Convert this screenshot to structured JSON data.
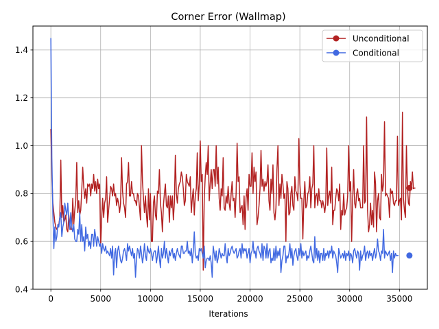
{
  "chart_data": {
    "type": "line",
    "title": "Corner Error (Wallmap)",
    "xlabel": "Iterations",
    "ylabel": "",
    "xlim": [
      -1800,
      37800
    ],
    "ylim": [
      0.4,
      1.5
    ],
    "xticks": [
      0,
      5000,
      10000,
      15000,
      20000,
      25000,
      30000,
      35000
    ],
    "xtick_labels": [
      "0",
      "5000",
      "10000",
      "15000",
      "20000",
      "25000",
      "30000",
      "35000"
    ],
    "yticks": [
      0.4,
      0.6,
      0.8,
      1.0,
      1.2,
      1.4
    ],
    "ytick_labels": [
      "0.4",
      "0.6",
      "0.8",
      "1.0",
      "1.2",
      "1.4"
    ],
    "grid": true,
    "legend_position": "upper right",
    "x_step": 100,
    "series": [
      {
        "name": "Unconditional",
        "color": "#b22222",
        "start_x": 0,
        "end_marker": {
          "x": 36000,
          "y": 0.823
        },
        "values": [
          1.07,
          0.88,
          0.76,
          0.72,
          0.68,
          0.66,
          0.65,
          0.66,
          0.67,
          0.7,
          0.72,
          0.7,
          0.75,
          0.68,
          0.69,
          0.71,
          0.65,
          0.64,
          0.71,
          0.67,
          0.65,
          0.65,
          0.78,
          0.67,
          0.73,
          0.77,
          0.76,
          0.72,
          0.77,
          0.71,
          0.73,
          0.81,
          0.91,
          0.83,
          0.78,
          0.82,
          0.76,
          0.84,
          0.83,
          0.82,
          0.79,
          0.84,
          0.82,
          0.88,
          0.81,
          0.85,
          0.8,
          0.86,
          0.82,
          0.84,
          0.72,
          0.69,
          0.78,
          0.7,
          0.76,
          0.78,
          0.71,
          0.68,
          0.73,
          0.78,
          0.83,
          0.82,
          0.79,
          0.84,
          0.79,
          0.8,
          0.75,
          0.78,
          0.76,
          0.72,
          0.76,
          0.87,
          0.81,
          0.76,
          0.74,
          0.7,
          0.84,
          0.85,
          0.77,
          0.79,
          0.79,
          0.85,
          0.8,
          0.8,
          0.77,
          0.77,
          0.75,
          0.8,
          0.79,
          0.74,
          0.69,
          0.72,
          0.85,
          0.78,
          0.72,
          0.79,
          0.71,
          0.66,
          0.82,
          0.69,
          0.8,
          0.6,
          0.69,
          0.76,
          0.79,
          0.71,
          0.69,
          0.81,
          0.8,
          0.7,
          0.76,
          0.72,
          0.64,
          0.75,
          0.8,
          0.84,
          0.75,
          0.74,
          0.79,
          0.68,
          0.79,
          0.74,
          0.79,
          0.69,
          0.76,
          0.75,
          0.8,
          0.76,
          0.82,
          0.84,
          0.85,
          0.89,
          0.87,
          0.82,
          0.75,
          0.77,
          0.77,
          0.85,
          0.84,
          0.83,
          0.87,
          0.72,
          0.78,
          0.82,
          0.71,
          0.79,
          0.82,
          0.79,
          0.77,
          0.84,
          0.89,
          0.85,
          0.88,
          0.83,
          0.78,
          0.87,
          0.93,
          0.88,
          0.78,
          0.77,
          0.84,
          0.9,
          0.82,
          0.9,
          0.9,
          0.83,
          0.79,
          0.84,
          0.91,
          0.78,
          0.73,
          0.82,
          0.79,
          0.95,
          0.74,
          0.73,
          0.79,
          0.76,
          0.83,
          0.76,
          0.73,
          0.8,
          0.85,
          0.77,
          0.78,
          0.7,
          0.8,
          0.76,
          0.85,
          0.87,
          0.72,
          0.74,
          0.75,
          0.67,
          0.79,
          0.86,
          0.78,
          0.82,
          0.73,
          0.88,
          0.83,
          0.83,
          0.84,
          0.8,
          0.91,
          0.85,
          0.89,
          0.67,
          0.7,
          0.75,
          0.82,
          0.89,
          0.83,
          0.86,
          0.81,
          0.85,
          0.83,
          0.85,
          0.92,
          0.77,
          0.73,
          0.86,
          0.8,
          0.92,
          0.72,
          0.69,
          0.74,
          0.9,
          0.87,
          0.75,
          0.84,
          0.78,
          0.88,
          0.84,
          0.78,
          0.8,
          0.82,
          0.85,
          0.82,
          0.71,
          0.72,
          0.8,
          0.83,
          0.75,
          0.73,
          0.87,
          0.81,
          0.8,
          0.77,
          0.79,
          0.84,
          0.78,
          0.78,
          0.71,
          0.77,
          0.85,
          0.74,
          0.75,
          0.8,
          0.81,
          0.87,
          0.74,
          0.82,
          0.84,
          0.75,
          0.74,
          0.79,
          0.8,
          0.75,
          0.82,
          0.77,
          0.77,
          0.74,
          0.77,
          0.75,
          0.72,
          0.76,
          0.79,
          0.75,
          0.79,
          0.81,
          0.76,
          0.91,
          0.67,
          0.73,
          0.73,
          0.78,
          0.82,
          0.81,
          0.77,
          0.84,
          0.65,
          0.73,
          0.71,
          0.8,
          0.71,
          0.73,
          0.74,
          0.79,
          0.79,
          0.81,
          0.85,
          0.76,
          0.77,
          0.9,
          0.76,
          0.74,
          0.8,
          0.82,
          0.77,
          0.78,
          0.74,
          0.74,
          0.74,
          0.78,
          0.76,
          0.77,
          0.81,
          0.73,
          0.64,
          0.67,
          0.76,
          0.67,
          0.73,
          0.66,
          0.89,
          0.84,
          0.81,
          0.77,
          0.8,
          0.7,
          0.69,
          0.88,
          0.81,
          0.84,
          0.74,
          0.79,
          0.8,
          0.79,
          0.78,
          0.7,
          0.82,
          0.8,
          0.81,
          0.76,
          0.75,
          0.77,
          0.77,
          0.71,
          0.75,
          0.77,
          0.78,
          0.69,
          0.75,
          0.78,
          0.73,
          0.7,
          0.77,
          0.83,
          0.76,
          0.75,
          0.85,
          0.82,
          0.89,
          0.82,
          0.823,
          0.823
        ],
        "peaks": [
          {
            "x": 1000,
            "y": 0.94
          },
          {
            "x": 2600,
            "y": 0.93
          },
          {
            "x": 3900,
            "y": 0.84
          },
          {
            "x": 5000,
            "y": 0.58
          },
          {
            "x": 5600,
            "y": 0.87
          },
          {
            "x": 7100,
            "y": 0.95
          },
          {
            "x": 7800,
            "y": 0.93
          },
          {
            "x": 9100,
            "y": 1.0
          },
          {
            "x": 10200,
            "y": 0.6
          },
          {
            "x": 10900,
            "y": 0.9
          },
          {
            "x": 12500,
            "y": 0.96
          },
          {
            "x": 13600,
            "y": 0.88
          },
          {
            "x": 14700,
            "y": 0.97
          },
          {
            "x": 15000,
            "y": 1.02
          },
          {
            "x": 15300,
            "y": 0.48
          },
          {
            "x": 15800,
            "y": 1.0
          },
          {
            "x": 16600,
            "y": 1.0
          },
          {
            "x": 18700,
            "y": 1.01
          },
          {
            "x": 19500,
            "y": 0.65
          },
          {
            "x": 20200,
            "y": 0.97
          },
          {
            "x": 21100,
            "y": 0.98
          },
          {
            "x": 22800,
            "y": 1.0
          },
          {
            "x": 23600,
            "y": 0.6
          },
          {
            "x": 24900,
            "y": 1.03
          },
          {
            "x": 25300,
            "y": 0.61
          },
          {
            "x": 26400,
            "y": 1.0
          },
          {
            "x": 27700,
            "y": 0.99
          },
          {
            "x": 29900,
            "y": 1.0
          },
          {
            "x": 30200,
            "y": 0.6
          },
          {
            "x": 31400,
            "y": 1.0
          },
          {
            "x": 31700,
            "y": 1.12
          },
          {
            "x": 32700,
            "y": 0.64
          },
          {
            "x": 33500,
            "y": 1.1
          },
          {
            "x": 34800,
            "y": 1.04
          },
          {
            "x": 35300,
            "y": 1.14
          },
          {
            "x": 35700,
            "y": 1.0
          }
        ]
      },
      {
        "name": "Conditional",
        "color": "#4169e1",
        "start_x": 0,
        "end_marker": {
          "x": 36000,
          "y": 0.541
        },
        "values": [
          1.45,
          0.95,
          0.72,
          0.57,
          0.66,
          0.6,
          0.62,
          0.67,
          0.66,
          0.7,
          0.72,
          0.62,
          0.66,
          0.68,
          0.7,
          0.73,
          0.71,
          0.76,
          0.69,
          0.65,
          0.72,
          0.66,
          0.64,
          0.67,
          0.61,
          0.6,
          0.6,
          0.65,
          0.63,
          0.63,
          0.6,
          0.67,
          0.6,
          0.62,
          0.56,
          0.66,
          0.61,
          0.63,
          0.58,
          0.6,
          0.57,
          0.63,
          0.63,
          0.58,
          0.65,
          0.62,
          0.58,
          0.62,
          0.6,
          0.58,
          0.59,
          0.55,
          0.59,
          0.57,
          0.56,
          0.58,
          0.55,
          0.56,
          0.55,
          0.54,
          0.57,
          0.53,
          0.58,
          0.52,
          0.55,
          0.57,
          0.49,
          0.56,
          0.58,
          0.55,
          0.52,
          0.51,
          0.53,
          0.56,
          0.57,
          0.55,
          0.52,
          0.59,
          0.56,
          0.58,
          0.56,
          0.54,
          0.57,
          0.53,
          0.55,
          0.47,
          0.53,
          0.57,
          0.56,
          0.53,
          0.58,
          0.55,
          0.51,
          0.54,
          0.59,
          0.54,
          0.52,
          0.58,
          0.56,
          0.55,
          0.57,
          0.55,
          0.52,
          0.55,
          0.56,
          0.56,
          0.51,
          0.54,
          0.58,
          0.53,
          0.49,
          0.57,
          0.53,
          0.55,
          0.6,
          0.53,
          0.57,
          0.54,
          0.51,
          0.56,
          0.54,
          0.56,
          0.57,
          0.53,
          0.55,
          0.52,
          0.55,
          0.57,
          0.55,
          0.54,
          0.53,
          0.58,
          0.58,
          0.55,
          0.55,
          0.56,
          0.56,
          0.6,
          0.55,
          0.56,
          0.54,
          0.57,
          0.51,
          0.56,
          0.55,
          0.55,
          0.53,
          0.54,
          0.52,
          0.57,
          0.56,
          0.57,
          0.55,
          0.53,
          0.58,
          0.49,
          0.52,
          0.53,
          0.53,
          0.52,
          0.54,
          0.51,
          0.56,
          0.58,
          0.55,
          0.52,
          0.56,
          0.51,
          0.53,
          0.57,
          0.55,
          0.53,
          0.55,
          0.54,
          0.54,
          0.59,
          0.54,
          0.51,
          0.57,
          0.54,
          0.55,
          0.57,
          0.58,
          0.56,
          0.55,
          0.56,
          0.57,
          0.53,
          0.54,
          0.56,
          0.57,
          0.53,
          0.59,
          0.55,
          0.57,
          0.56,
          0.57,
          0.53,
          0.55,
          0.57,
          0.51,
          0.55,
          0.56,
          0.6,
          0.55,
          0.56,
          0.53,
          0.57,
          0.58,
          0.56,
          0.55,
          0.53,
          0.59,
          0.52,
          0.58,
          0.57,
          0.53,
          0.59,
          0.53,
          0.56,
          0.57,
          0.51,
          0.53,
          0.52,
          0.57,
          0.52,
          0.58,
          0.53,
          0.56,
          0.54,
          0.57,
          0.56,
          0.52,
          0.54,
          0.58,
          0.58,
          0.51,
          0.54,
          0.53,
          0.55,
          0.59,
          0.53,
          0.57,
          0.5,
          0.54,
          0.56,
          0.57,
          0.54,
          0.52,
          0.57,
          0.54,
          0.59,
          0.53,
          0.56,
          0.54,
          0.55,
          0.56,
          0.52,
          0.54,
          0.53,
          0.56,
          0.58,
          0.55,
          0.52,
          0.51,
          0.55,
          0.53,
          0.57,
          0.52,
          0.56,
          0.51,
          0.55,
          0.55,
          0.52,
          0.57,
          0.52,
          0.55,
          0.54,
          0.56,
          0.53,
          0.56,
          0.55,
          0.58,
          0.53,
          0.56,
          0.55,
          0.54,
          0.51,
          0.56,
          0.57,
          0.55,
          0.53,
          0.54,
          0.55,
          0.53,
          0.56,
          0.52,
          0.55,
          0.54,
          0.56,
          0.52,
          0.55,
          0.54,
          0.51,
          0.56,
          0.57,
          0.55,
          0.53,
          0.56,
          0.55,
          0.54,
          0.56,
          0.52,
          0.54,
          0.55,
          0.58,
          0.52,
          0.55,
          0.56,
          0.53,
          0.56,
          0.54,
          0.55,
          0.52,
          0.55,
          0.57,
          0.53,
          0.55,
          0.54,
          0.56,
          0.55,
          0.52,
          0.56,
          0.55,
          0.54,
          0.53,
          0.56,
          0.55,
          0.54,
          0.55,
          0.56,
          0.52,
          0.55,
          0.54,
          0.56,
          0.53,
          0.55,
          0.54,
          0.541,
          0.541
        ],
        "peaks": [
          {
            "x": 1400,
            "y": 0.76
          },
          {
            "x": 2900,
            "y": 0.72
          },
          {
            "x": 6300,
            "y": 0.46
          },
          {
            "x": 8500,
            "y": 0.45
          },
          {
            "x": 14400,
            "y": 0.64
          },
          {
            "x": 16200,
            "y": 0.45
          },
          {
            "x": 23100,
            "y": 0.47
          },
          {
            "x": 26500,
            "y": 0.62
          },
          {
            "x": 28800,
            "y": 0.47
          },
          {
            "x": 31000,
            "y": 0.48
          },
          {
            "x": 32800,
            "y": 0.61
          },
          {
            "x": 33400,
            "y": 0.65
          },
          {
            "x": 34300,
            "y": 0.47
          },
          {
            "x": 35100,
            "y": 0.6
          }
        ]
      }
    ]
  }
}
